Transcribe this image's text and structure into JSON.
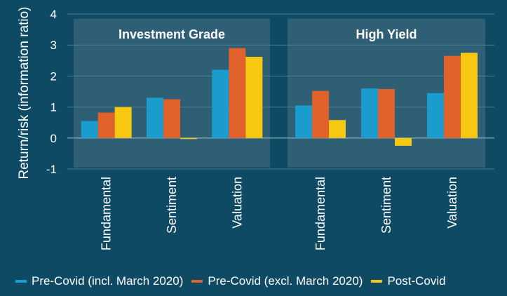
{
  "colors": {
    "background": "#0e4a63",
    "panel": "#2f5f74",
    "pre_covid_incl": "#1a9ccf",
    "pre_covid_excl": "#e0622a",
    "post_covid": "#f7c812"
  },
  "chart_data": {
    "type": "bar",
    "ylabel": "Return/risk (information ratio)",
    "ylim": [
      -1,
      4
    ],
    "yticks": [
      "-1",
      "0",
      "1",
      "2",
      "3",
      "4"
    ],
    "grid": true,
    "legend_position": "bottom",
    "panels": [
      {
        "title": "Investment Grade",
        "categories": [
          "Fundamental",
          "Sentiment",
          "Valuation"
        ],
        "series": [
          {
            "name": "Pre-Covid (incl. March 2020)",
            "values": [
              0.55,
              1.3,
              2.2
            ]
          },
          {
            "name": "Pre-Covid (excl. March 2020)",
            "values": [
              0.82,
              1.25,
              2.9
            ]
          },
          {
            "name": "Post-Covid",
            "values": [
              1.0,
              -0.02,
              2.62
            ]
          }
        ]
      },
      {
        "title": "High Yield",
        "categories": [
          "Fundamental",
          "Sentiment",
          "Valuation"
        ],
        "series": [
          {
            "name": "Pre-Covid (incl. March 2020)",
            "values": [
              1.05,
              1.6,
              1.45
            ]
          },
          {
            "name": "Pre-Covid (excl. March 2020)",
            "values": [
              1.52,
              1.58,
              2.65
            ]
          },
          {
            "name": "Post-Covid",
            "values": [
              0.58,
              -0.25,
              2.75
            ]
          }
        ]
      }
    ]
  }
}
